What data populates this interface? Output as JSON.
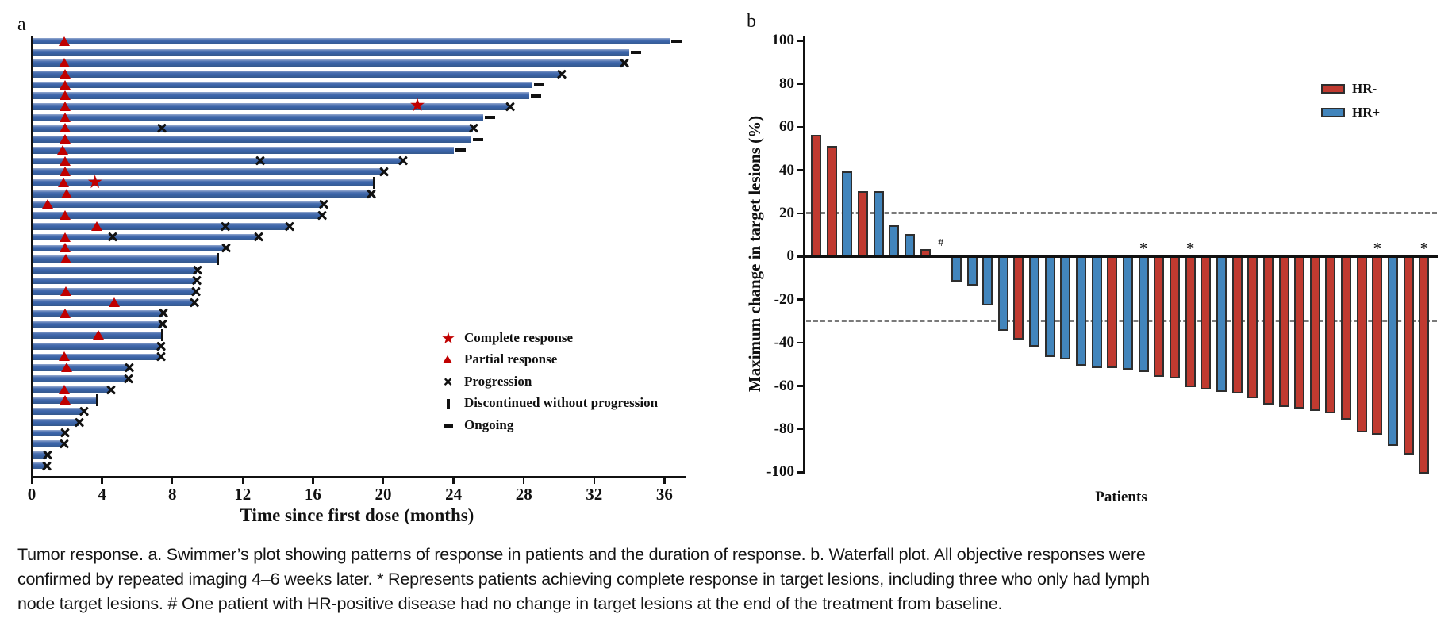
{
  "panel_a": {
    "label": "a"
  },
  "panel_b": {
    "label": "b"
  },
  "caption": {
    "lines": [
      "Tumor response. a. Swimmer’s plot showing patterns of response in patients and the duration of response. b. Waterfall plot. All objective responses were",
      "confirmed by repeated imaging 4–6 weeks later. * Represents patients achieving complete response in target lesions, including three who only had lymph",
      "node target lesions. # One patient with HR-positive disease had no change in target lesions at the end of the treatment from baseline."
    ]
  },
  "chart_data": [
    {
      "type": "swimmer",
      "panel": "a",
      "xlabel": "Time since first dose (months)",
      "xlim": [
        0,
        37.5
      ],
      "x_ticks": [
        0,
        4,
        8,
        12,
        16,
        20,
        24,
        28,
        32,
        36
      ],
      "bar_color": "#3a63a8",
      "marker_color": "#c00000",
      "legend": [
        {
          "marker": "star",
          "label": "Complete response"
        },
        {
          "marker": "triangle",
          "label": "Partial response"
        },
        {
          "marker": "x",
          "label": "Progression"
        },
        {
          "marker": "bar",
          "label": "Discontinued without progression"
        },
        {
          "marker": "dash",
          "label": "Ongoing"
        }
      ],
      "bars": [
        {
          "months": 36.3,
          "end": "ongoing",
          "partial_response": 1.85
        },
        {
          "months": 34.0,
          "end": "ongoing"
        },
        {
          "months": 33.7,
          "end": "progression",
          "partial_response": 1.85
        },
        {
          "months": 30.1,
          "end": "progression",
          "partial_response": 1.9
        },
        {
          "months": 28.5,
          "end": "ongoing",
          "partial_response": 1.9
        },
        {
          "months": 28.3,
          "end": "ongoing",
          "partial_response": 1.9
        },
        {
          "months": 27.2,
          "end": "progression",
          "partial_response": 1.9,
          "complete_response": 22.0
        },
        {
          "months": 25.7,
          "end": "ongoing",
          "partial_response": 1.9
        },
        {
          "months": 25.1,
          "end": "progression",
          "partial_response": 1.9,
          "progression_marks": [
            7.4
          ]
        },
        {
          "months": 25.0,
          "end": "ongoing",
          "partial_response": 1.9
        },
        {
          "months": 24.0,
          "end": "ongoing",
          "partial_response": 1.75
        },
        {
          "months": 21.1,
          "end": "progression",
          "partial_response": 1.9,
          "progression_marks": [
            13.0
          ]
        },
        {
          "months": 20.0,
          "end": "progression",
          "partial_response": 1.9
        },
        {
          "months": 19.4,
          "end": "discontinued",
          "partial_response": 1.8,
          "complete_response": 3.65
        },
        {
          "months": 19.3,
          "end": "progression",
          "partial_response": 2.0
        },
        {
          "months": 16.55,
          "end": "progression",
          "partial_response": 0.9
        },
        {
          "months": 16.5,
          "end": "progression",
          "partial_response": 1.9
        },
        {
          "months": 14.65,
          "end": "progression",
          "partial_response": 3.7,
          "progression_marks": [
            11.0
          ]
        },
        {
          "months": 12.85,
          "end": "progression",
          "partial_response": 1.9,
          "progression_marks": [
            4.6
          ]
        },
        {
          "months": 11.0,
          "end": "progression",
          "partial_response": 1.9
        },
        {
          "months": 10.5,
          "end": "discontinued",
          "partial_response": 1.95
        },
        {
          "months": 9.4,
          "end": "progression"
        },
        {
          "months": 9.35,
          "end": "progression"
        },
        {
          "months": 9.3,
          "end": "progression",
          "partial_response": 1.95
        },
        {
          "months": 9.2,
          "end": "progression",
          "partial_response": 4.7
        },
        {
          "months": 7.45,
          "end": "progression",
          "partial_response": 1.9
        },
        {
          "months": 7.4,
          "end": "progression"
        },
        {
          "months": 7.35,
          "end": "discontinued",
          "partial_response": 3.8
        },
        {
          "months": 7.3,
          "end": "progression"
        },
        {
          "months": 7.3,
          "end": "progression",
          "partial_response": 1.85
        },
        {
          "months": 5.5,
          "end": "progression",
          "partial_response": 2.0
        },
        {
          "months": 5.45,
          "end": "progression"
        },
        {
          "months": 4.45,
          "end": "progression",
          "partial_response": 1.85
        },
        {
          "months": 3.65,
          "end": "discontinued",
          "partial_response": 1.9
        },
        {
          "months": 2.95,
          "end": "progression"
        },
        {
          "months": 2.65,
          "end": "progression"
        },
        {
          "months": 1.85,
          "end": "progression"
        },
        {
          "months": 1.8,
          "end": "progression"
        },
        {
          "months": 0.85,
          "end": "progression"
        },
        {
          "months": 0.8,
          "end": "progression"
        }
      ]
    },
    {
      "type": "waterfall-bar",
      "panel": "b",
      "ylabel": "Maximum change in target lesions (%)",
      "xlabel": "Patients",
      "ylim": [
        -100,
        100
      ],
      "y_ticks": [
        100,
        80,
        60,
        40,
        20,
        0,
        -20,
        -40,
        -60,
        -80,
        -100
      ],
      "reference_lines": [
        20,
        -30
      ],
      "legend": [
        {
          "label": "HR-",
          "color": "#c03a30"
        },
        {
          "label": "HR+",
          "color": "#4285bc"
        }
      ],
      "colors": {
        "HR-": "#c03a30",
        "HR+": "#4285bc"
      },
      "patients": [
        {
          "change": 56,
          "group": "HR-"
        },
        {
          "change": 51,
          "group": "HR-"
        },
        {
          "change": 39,
          "group": "HR+"
        },
        {
          "change": 30,
          "group": "HR-"
        },
        {
          "change": 30,
          "group": "HR+"
        },
        {
          "change": 14,
          "group": "HR+"
        },
        {
          "change": 10,
          "group": "HR+"
        },
        {
          "change": 3,
          "group": "HR-"
        },
        {
          "change": 0,
          "group": "HR+",
          "flag": "#"
        },
        {
          "change": -11,
          "group": "HR+"
        },
        {
          "change": -13,
          "group": "HR+"
        },
        {
          "change": -22,
          "group": "HR+"
        },
        {
          "change": -34,
          "group": "HR+"
        },
        {
          "change": -38,
          "group": "HR-"
        },
        {
          "change": -41,
          "group": "HR+"
        },
        {
          "change": -46,
          "group": "HR+"
        },
        {
          "change": -47,
          "group": "HR+"
        },
        {
          "change": -50,
          "group": "HR+"
        },
        {
          "change": -51,
          "group": "HR+"
        },
        {
          "change": -51,
          "group": "HR-"
        },
        {
          "change": -52,
          "group": "HR+"
        },
        {
          "change": -53,
          "group": "HR+",
          "flag": "*"
        },
        {
          "change": -55,
          "group": "HR-"
        },
        {
          "change": -56,
          "group": "HR-"
        },
        {
          "change": -60,
          "group": "HR-",
          "flag": "*"
        },
        {
          "change": -61,
          "group": "HR-"
        },
        {
          "change": -62,
          "group": "HR+"
        },
        {
          "change": -63,
          "group": "HR-"
        },
        {
          "change": -65,
          "group": "HR-"
        },
        {
          "change": -68,
          "group": "HR-"
        },
        {
          "change": -69,
          "group": "HR-"
        },
        {
          "change": -70,
          "group": "HR-"
        },
        {
          "change": -71,
          "group": "HR-"
        },
        {
          "change": -72,
          "group": "HR-"
        },
        {
          "change": -75,
          "group": "HR-"
        },
        {
          "change": -81,
          "group": "HR-"
        },
        {
          "change": -82,
          "group": "HR-",
          "flag": "*"
        },
        {
          "change": -87,
          "group": "HR+"
        },
        {
          "change": -91,
          "group": "HR-"
        },
        {
          "change": -100,
          "group": "HR-",
          "flag": "*"
        }
      ]
    }
  ]
}
